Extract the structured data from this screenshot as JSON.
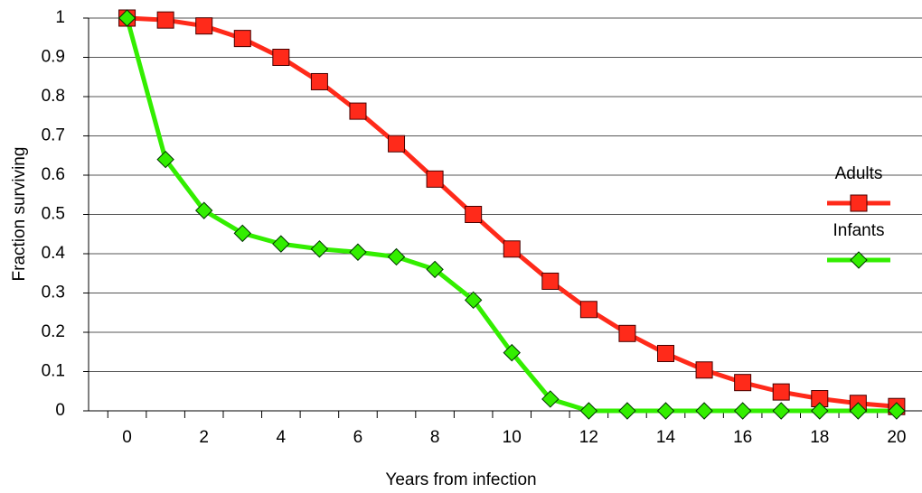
{
  "chart_data": {
    "type": "line",
    "x_label": "Years from infection",
    "y_label": "Fraction surviving",
    "x": [
      0,
      1,
      2,
      3,
      4,
      5,
      6,
      7,
      8,
      9,
      10,
      11,
      12,
      13,
      14,
      15,
      16,
      17,
      18,
      19,
      20
    ],
    "series": [
      {
        "name": "Adults",
        "color": "#ff2a1a",
        "marker": "square",
        "values": [
          1,
          0.995,
          0.98,
          0.948,
          0.9,
          0.838,
          0.763,
          0.68,
          0.59,
          0.5,
          0.412,
          0.33,
          0.258,
          0.197,
          0.146,
          0.104,
          0.072,
          0.048,
          0.031,
          0.019,
          0.011
        ]
      },
      {
        "name": "Infants",
        "color": "#33ee00",
        "marker": "diamond",
        "values": [
          1,
          0.64,
          0.51,
          0.452,
          0.425,
          0.412,
          0.404,
          0.392,
          0.36,
          0.282,
          0.148,
          0.03,
          0,
          0,
          0,
          0,
          0,
          0,
          0,
          0,
          0
        ]
      }
    ],
    "xlim": [
      -1,
      20.66
    ],
    "ylim": [
      0,
      1
    ],
    "xticks": [
      0,
      2,
      4,
      6,
      8,
      10,
      12,
      14,
      16,
      18,
      20
    ],
    "yticks": [
      0,
      0.1,
      0.2,
      0.3,
      0.4,
      0.5,
      0.6,
      0.7,
      0.8,
      0.9,
      1
    ],
    "grid": true,
    "legend": "right"
  }
}
